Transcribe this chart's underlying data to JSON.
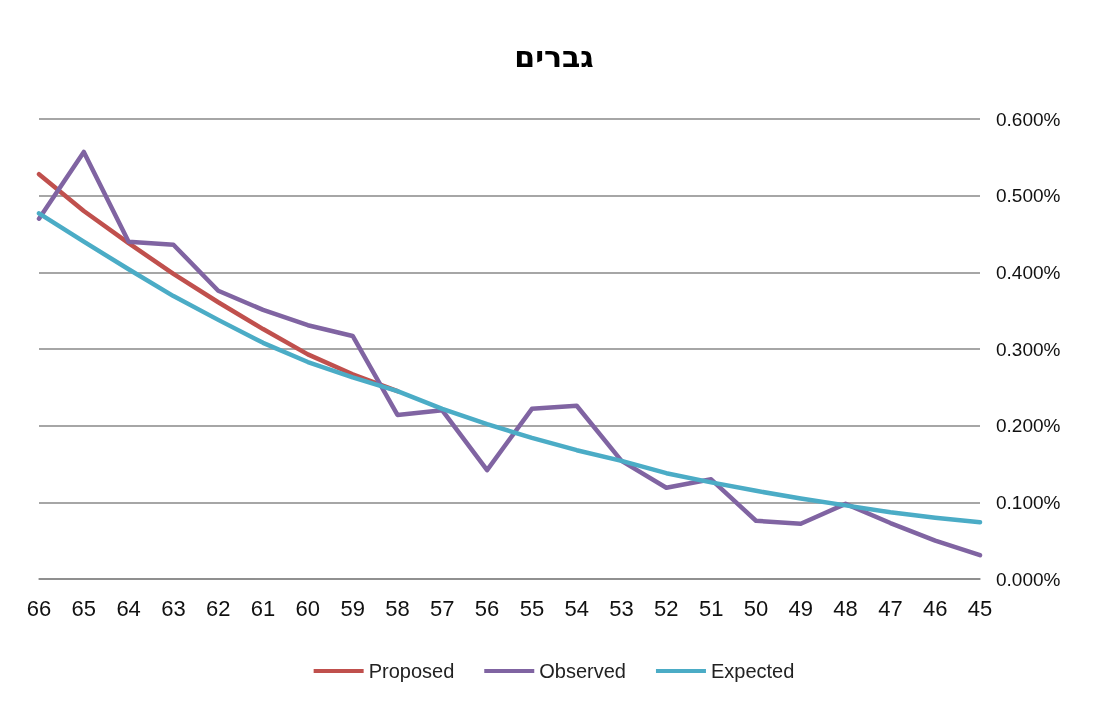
{
  "chart_data": {
    "type": "line",
    "title": "גברים",
    "categories": [
      "66",
      "65",
      "64",
      "63",
      "62",
      "61",
      "60",
      "59",
      "58",
      "57",
      "56",
      "55",
      "54",
      "53",
      "52",
      "51",
      "50",
      "49",
      "48",
      "47",
      "46",
      "45"
    ],
    "series": [
      {
        "name": "Proposed",
        "color": "#c0504d",
        "values": [
          0.528,
          0.48,
          0.438,
          0.398,
          0.361,
          0.326,
          0.293,
          0.267,
          0.245,
          null,
          null,
          null,
          null,
          null,
          null,
          null,
          null,
          null,
          null,
          null,
          null,
          null
        ]
      },
      {
        "name": "Observed",
        "color": "#8064a2",
        "values": [
          0.47,
          0.557,
          0.44,
          0.436,
          0.376,
          0.351,
          0.331,
          0.317,
          0.214,
          0.22,
          0.142,
          0.222,
          0.226,
          0.154,
          0.119,
          0.13,
          0.076,
          0.072,
          0.098,
          0.073,
          0.05,
          0.031
        ]
      },
      {
        "name": "Expected",
        "color": "#4bacc6",
        "values": [
          0.477,
          0.44,
          0.404,
          0.369,
          0.338,
          0.308,
          0.283,
          0.263,
          0.245,
          0.222,
          0.202,
          0.184,
          0.168,
          0.154,
          0.138,
          0.126,
          0.115,
          0.105,
          0.096,
          0.087,
          0.08,
          0.074
        ]
      }
    ],
    "ylim": [
      0,
      0.6
    ],
    "yticks": [
      {
        "value": 0,
        "label": "0.000%"
      },
      {
        "value": 0.1,
        "label": "0.100%"
      },
      {
        "value": 0.2,
        "label": "0.200%"
      },
      {
        "value": 0.3,
        "label": "0.300%"
      },
      {
        "value": 0.4,
        "label": "0.400%"
      },
      {
        "value": 0.5,
        "label": "0.500%"
      },
      {
        "value": 0.6,
        "label": "0.600%"
      }
    ],
    "grid": "y",
    "legend": "bottom",
    "marker": "none",
    "line_style": "solid"
  }
}
